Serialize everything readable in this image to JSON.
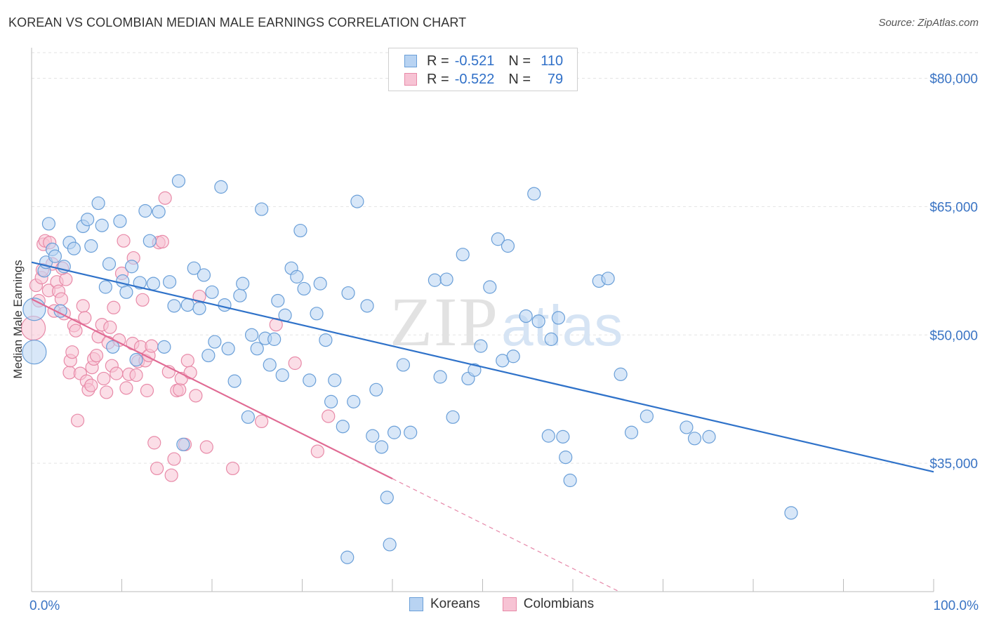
{
  "title": "KOREAN VS COLOMBIAN MEDIAN MALE EARNINGS CORRELATION CHART",
  "source": "Source: ZipAtlas.com",
  "watermark": {
    "zip": "ZIP",
    "atlas": "atlas"
  },
  "legend": {
    "koreans": {
      "r_label": "R =",
      "r_value": "-0.521",
      "n_label": "N =",
      "n_value": "110"
    },
    "colombians": {
      "r_label": "R =",
      "r_value": "-0.522",
      "n_label": "N =",
      "n_value": "79"
    }
  },
  "bottom_legend": {
    "koreans": "Koreans",
    "colombians": "Colombians"
  },
  "colors": {
    "korean_fill": "#b8d3f2",
    "korean_stroke": "#6a9fd8",
    "korean_line": "#2f72c9",
    "colombian_fill": "#f7c3d4",
    "colombian_stroke": "#e88aa8",
    "colombian_line": "#e06a93",
    "axis_label": "#3a74c4"
  },
  "chart_data": {
    "type": "scatter",
    "xlabel": "",
    "ylabel": "Median Male Earnings",
    "xlim": [
      0,
      100
    ],
    "ylim": [
      20000,
      83000
    ],
    "x_tick_labels": [
      "0.0%",
      "100.0%"
    ],
    "y_ticks": [
      35000,
      50000,
      65000,
      80000
    ],
    "y_tick_labels": [
      "$35,000",
      "$50,000",
      "$65,000",
      "$80,000"
    ],
    "grid": true,
    "series": [
      {
        "name": "Koreans",
        "trend": {
          "x": [
            0,
            100
          ],
          "y": [
            58500,
            34000
          ],
          "dashed_from": null
        },
        "points": [
          [
            0.3,
            53000
          ],
          [
            0.3,
            48000
          ],
          [
            1.4,
            57500
          ],
          [
            1.6,
            58500
          ],
          [
            1.9,
            63000
          ],
          [
            2.3,
            60000
          ],
          [
            2.6,
            59200
          ],
          [
            3.2,
            52800
          ],
          [
            3.6,
            58000
          ],
          [
            4.2,
            60800
          ],
          [
            4.7,
            60100
          ],
          [
            5.7,
            62700
          ],
          [
            6.2,
            63500
          ],
          [
            6.6,
            60400
          ],
          [
            7.4,
            65400
          ],
          [
            7.8,
            62800
          ],
          [
            8.2,
            55600
          ],
          [
            8.6,
            58300
          ],
          [
            9.0,
            48600
          ],
          [
            9.8,
            63300
          ],
          [
            10.1,
            56300
          ],
          [
            10.5,
            55000
          ],
          [
            11.1,
            58000
          ],
          [
            11.6,
            47100
          ],
          [
            12.0,
            56100
          ],
          [
            12.6,
            64500
          ],
          [
            13.1,
            61000
          ],
          [
            13.5,
            56000
          ],
          [
            14.1,
            64400
          ],
          [
            14.7,
            48600
          ],
          [
            15.3,
            56200
          ],
          [
            15.8,
            53400
          ],
          [
            16.3,
            68000
          ],
          [
            16.8,
            37200
          ],
          [
            17.3,
            53500
          ],
          [
            18.0,
            57800
          ],
          [
            18.6,
            53100
          ],
          [
            19.1,
            57000
          ],
          [
            19.6,
            47600
          ],
          [
            20.0,
            55000
          ],
          [
            20.3,
            49200
          ],
          [
            21.0,
            67300
          ],
          [
            21.4,
            53500
          ],
          [
            21.8,
            48400
          ],
          [
            22.5,
            44600
          ],
          [
            23.1,
            54600
          ],
          [
            23.4,
            56000
          ],
          [
            24.0,
            40400
          ],
          [
            24.4,
            50000
          ],
          [
            25.0,
            48400
          ],
          [
            25.5,
            64700
          ],
          [
            25.9,
            49600
          ],
          [
            26.4,
            46500
          ],
          [
            26.9,
            49500
          ],
          [
            27.3,
            54000
          ],
          [
            27.8,
            45300
          ],
          [
            28.1,
            52300
          ],
          [
            28.8,
            57800
          ],
          [
            29.4,
            56800
          ],
          [
            29.8,
            62200
          ],
          [
            30.2,
            55400
          ],
          [
            30.8,
            44700
          ],
          [
            31.6,
            52500
          ],
          [
            32.0,
            56000
          ],
          [
            32.6,
            49400
          ],
          [
            33.2,
            42200
          ],
          [
            33.6,
            44700
          ],
          [
            34.5,
            39300
          ],
          [
            35.1,
            54900
          ],
          [
            35.7,
            42200
          ],
          [
            36.1,
            65600
          ],
          [
            37.2,
            53400
          ],
          [
            37.8,
            38200
          ],
          [
            38.2,
            43600
          ],
          [
            38.8,
            36900
          ],
          [
            39.4,
            31000
          ],
          [
            39.7,
            25500
          ],
          [
            40.2,
            38600
          ],
          [
            41.2,
            46500
          ],
          [
            42.0,
            38600
          ],
          [
            44.7,
            56400
          ],
          [
            45.3,
            45100
          ],
          [
            46.0,
            56500
          ],
          [
            46.7,
            40400
          ],
          [
            47.8,
            59400
          ],
          [
            48.4,
            44900
          ],
          [
            49.1,
            45900
          ],
          [
            49.8,
            48700
          ],
          [
            50.8,
            55600
          ],
          [
            51.7,
            61200
          ],
          [
            52.2,
            47000
          ],
          [
            52.8,
            60400
          ],
          [
            53.4,
            47500
          ],
          [
            54.8,
            52200
          ],
          [
            55.7,
            66500
          ],
          [
            56.2,
            51600
          ],
          [
            57.3,
            38200
          ],
          [
            57.6,
            49500
          ],
          [
            58.4,
            52000
          ],
          [
            58.9,
            38100
          ],
          [
            59.2,
            35700
          ],
          [
            59.7,
            33000
          ],
          [
            62.9,
            56300
          ],
          [
            63.9,
            56600
          ],
          [
            65.3,
            45400
          ],
          [
            66.5,
            38600
          ],
          [
            68.2,
            40500
          ],
          [
            72.6,
            39200
          ],
          [
            73.5,
            37900
          ],
          [
            75.1,
            38100
          ],
          [
            84.2,
            29200
          ],
          [
            35.0,
            24000
          ]
        ],
        "sizes": {
          "0": 32,
          "1": 34
        }
      },
      {
        "name": "Colombians",
        "trend": {
          "x": [
            0,
            40,
            100
          ],
          "y": [
            54200,
            33200,
            1700
          ],
          "dashed_from": 40
        },
        "points": [
          [
            0.2,
            50800
          ],
          [
            0.5,
            55800
          ],
          [
            0.8,
            54000
          ],
          [
            1.1,
            56700
          ],
          [
            1.2,
            57600
          ],
          [
            1.3,
            60600
          ],
          [
            1.5,
            61000
          ],
          [
            1.9,
            55200
          ],
          [
            2.0,
            60800
          ],
          [
            2.3,
            58300
          ],
          [
            2.5,
            52800
          ],
          [
            2.8,
            56200
          ],
          [
            3.0,
            55100
          ],
          [
            3.3,
            54200
          ],
          [
            3.6,
            52500
          ],
          [
            3.8,
            56500
          ],
          [
            4.2,
            45600
          ],
          [
            4.3,
            47000
          ],
          [
            4.5,
            48000
          ],
          [
            4.7,
            51100
          ],
          [
            4.9,
            50500
          ],
          [
            5.1,
            40000
          ],
          [
            5.4,
            45500
          ],
          [
            5.7,
            53400
          ],
          [
            5.9,
            52000
          ],
          [
            6.1,
            44600
          ],
          [
            6.3,
            43600
          ],
          [
            6.6,
            44100
          ],
          [
            6.7,
            46200
          ],
          [
            6.9,
            47200
          ],
          [
            7.2,
            47600
          ],
          [
            7.4,
            49800
          ],
          [
            7.8,
            51200
          ],
          [
            8.0,
            44900
          ],
          [
            8.3,
            43300
          ],
          [
            8.5,
            49100
          ],
          [
            8.7,
            50900
          ],
          [
            8.9,
            46400
          ],
          [
            9.1,
            53200
          ],
          [
            9.4,
            45500
          ],
          [
            9.7,
            49400
          ],
          [
            10.0,
            57200
          ],
          [
            10.2,
            61000
          ],
          [
            10.5,
            43800
          ],
          [
            10.8,
            45400
          ],
          [
            11.2,
            49000
          ],
          [
            11.3,
            59000
          ],
          [
            11.6,
            45300
          ],
          [
            11.8,
            46900
          ],
          [
            12.1,
            48600
          ],
          [
            12.3,
            54100
          ],
          [
            12.6,
            47000
          ],
          [
            12.8,
            43500
          ],
          [
            13.0,
            47600
          ],
          [
            13.3,
            48700
          ],
          [
            13.6,
            37400
          ],
          [
            13.9,
            34400
          ],
          [
            14.1,
            60800
          ],
          [
            14.5,
            60900
          ],
          [
            14.8,
            66000
          ],
          [
            15.2,
            45700
          ],
          [
            15.5,
            33600
          ],
          [
            15.8,
            35500
          ],
          [
            16.1,
            43500
          ],
          [
            16.4,
            43600
          ],
          [
            16.6,
            44900
          ],
          [
            17.0,
            37200
          ],
          [
            17.3,
            47000
          ],
          [
            17.6,
            45600
          ],
          [
            18.2,
            42900
          ],
          [
            18.6,
            54500
          ],
          [
            19.4,
            36900
          ],
          [
            22.3,
            34400
          ],
          [
            25.5,
            39900
          ],
          [
            27.1,
            51200
          ],
          [
            29.2,
            46700
          ],
          [
            31.7,
            36400
          ],
          [
            32.9,
            40500
          ],
          [
            3.4,
            57800
          ]
        ],
        "sizes": {
          "0": 34
        }
      }
    ]
  }
}
